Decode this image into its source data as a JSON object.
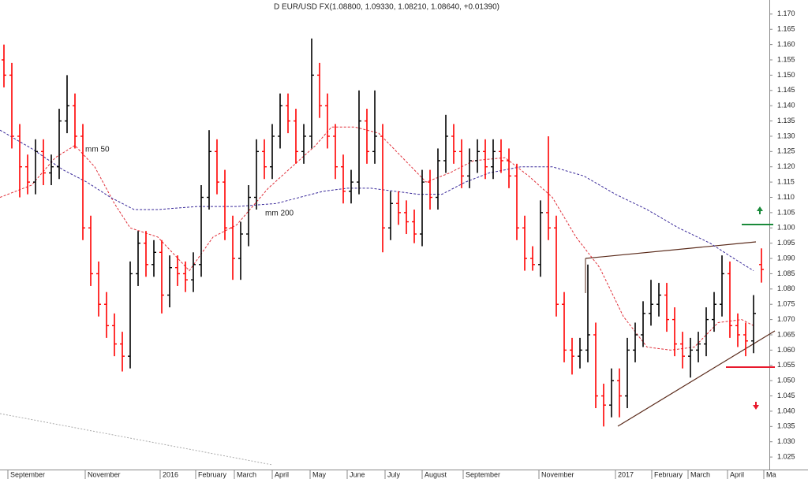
{
  "chart_data": {
    "type": "ohlc",
    "title": "D EUR/USD FX(1.08800, 1.09330, 1.08210, 1.08640, +0.01390)",
    "up_color": "#000000",
    "down_color": "#ff0000",
    "xlim": [
      -0.5,
      97
    ],
    "ylim": [
      1.0209,
      1.1746
    ],
    "xticks": [
      {
        "value": 0.5,
        "label": "September"
      },
      {
        "value": 10.3,
        "label": "November"
      },
      {
        "value": 19.8,
        "label": "2016"
      },
      {
        "value": 24.3,
        "label": "February"
      },
      {
        "value": 29.2,
        "label": "March"
      },
      {
        "value": 34,
        "label": "April"
      },
      {
        "value": 38.8,
        "label": "May"
      },
      {
        "value": 43.5,
        "label": "June"
      },
      {
        "value": 48.3,
        "label": "July"
      },
      {
        "value": 53,
        "label": "August"
      },
      {
        "value": 58.2,
        "label": "September"
      },
      {
        "value": 67.8,
        "label": "November"
      },
      {
        "value": 77.5,
        "label": "2017"
      },
      {
        "value": 82.1,
        "label": "February"
      },
      {
        "value": 86.7,
        "label": "March"
      },
      {
        "value": 91.7,
        "label": "April"
      },
      {
        "value": 96.3,
        "label": "Ma"
      }
    ],
    "yticks": [
      {
        "value": 1.17,
        "label": "1.170"
      },
      1.165,
      {
        "value": 1.16,
        "label": "1.160"
      },
      1.155,
      {
        "value": 1.15,
        "label": "1.150"
      },
      1.145,
      {
        "value": 1.14,
        "label": "1.140"
      },
      1.135,
      {
        "value": 1.13,
        "label": "1.130"
      },
      1.125,
      {
        "value": 1.12,
        "label": "1.120"
      },
      1.115,
      {
        "value": 1.11,
        "label": "1.110"
      },
      1.105,
      {
        "value": 1.1,
        "label": "1.100"
      },
      1.095,
      {
        "value": 1.09,
        "label": "1.090"
      },
      1.085,
      {
        "value": 1.08,
        "label": "1.080"
      },
      1.075,
      {
        "value": 1.07,
        "label": "1.070"
      },
      1.065,
      {
        "value": 1.06,
        "label": "1.060"
      },
      1.055,
      {
        "value": 1.05,
        "label": "1.050"
      },
      1.045,
      {
        "value": 1.04,
        "label": "1.040"
      },
      1.035,
      {
        "value": 1.03,
        "label": "1.030"
      },
      1.025
    ],
    "open": [
      1.155,
      1.15,
      1.13,
      1.12,
      1.115,
      1.125,
      1.118,
      1.12,
      1.135,
      1.14,
      1.13,
      1.1,
      1.085,
      1.075,
      1.068,
      1.062,
      1.058,
      1.085,
      1.095,
      1.088,
      1.092,
      1.078,
      1.087,
      1.085,
      1.083,
      1.088,
      1.11,
      1.125,
      1.115,
      1.1,
      1.09,
      1.098,
      1.11,
      1.125,
      1.12,
      1.13,
      1.14,
      1.135,
      1.125,
      1.13,
      1.15,
      1.14,
      1.13,
      1.12,
      1.112,
      1.115,
      1.135,
      1.125,
      1.13,
      1.1,
      1.108,
      1.105,
      1.102,
      1.098,
      1.115,
      1.11,
      1.122,
      1.13,
      1.125,
      1.117,
      1.122,
      1.125,
      1.12,
      1.125,
      1.122,
      1.117,
      1.1,
      1.09,
      1.088,
      1.105,
      1.1,
      1.075,
      1.06,
      1.058,
      1.06,
      1.065,
      1.045,
      1.042,
      1.05,
      1.045,
      1.06,
      1.065,
      1.072,
      1.075,
      1.078,
      1.07,
      1.062,
      1.058,
      1.06,
      1.062,
      1.07,
      1.075,
      1.085,
      1.068,
      1.065,
      1.063,
      1.088
    ],
    "high": [
      1.16,
      1.154,
      1.134,
      1.124,
      1.129,
      1.129,
      1.124,
      1.139,
      1.15,
      1.144,
      1.134,
      1.104,
      1.089,
      1.079,
      1.072,
      1.066,
      1.089,
      1.099,
      1.099,
      1.096,
      1.096,
      1.091,
      1.091,
      1.089,
      1.092,
      1.114,
      1.132,
      1.129,
      1.119,
      1.104,
      1.102,
      1.114,
      1.129,
      1.129,
      1.134,
      1.144,
      1.144,
      1.139,
      1.134,
      1.162,
      1.154,
      1.144,
      1.134,
      1.124,
      1.119,
      1.145,
      1.139,
      1.145,
      1.134,
      1.112,
      1.112,
      1.109,
      1.106,
      1.119,
      1.119,
      1.126,
      1.137,
      1.134,
      1.129,
      1.126,
      1.129,
      1.129,
      1.129,
      1.129,
      1.126,
      1.121,
      1.104,
      1.094,
      1.109,
      1.13,
      1.104,
      1.079,
      1.064,
      1.064,
      1.088,
      1.069,
      1.049,
      1.054,
      1.054,
      1.064,
      1.069,
      1.076,
      1.083,
      1.082,
      1.082,
      1.074,
      1.066,
      1.064,
      1.066,
      1.074,
      1.079,
      1.091,
      1.089,
      1.072,
      1.069,
      1.078,
      1.0933
    ],
    "low": [
      1.146,
      1.126,
      1.11,
      1.111,
      1.111,
      1.114,
      1.114,
      1.116,
      1.131,
      1.126,
      1.096,
      1.081,
      1.071,
      1.064,
      1.058,
      1.053,
      1.054,
      1.081,
      1.084,
      1.084,
      1.072,
      1.074,
      1.081,
      1.079,
      1.079,
      1.084,
      1.106,
      1.111,
      1.096,
      1.083,
      1.083,
      1.094,
      1.106,
      1.116,
      1.116,
      1.126,
      1.131,
      1.121,
      1.121,
      1.126,
      1.136,
      1.126,
      1.116,
      1.108,
      1.108,
      1.111,
      1.121,
      1.121,
      1.092,
      1.096,
      1.101,
      1.098,
      1.095,
      1.094,
      1.106,
      1.106,
      1.118,
      1.121,
      1.113,
      1.113,
      1.118,
      1.116,
      1.116,
      1.118,
      1.113,
      1.096,
      1.086,
      1.086,
      1.084,
      1.096,
      1.071,
      1.056,
      1.052,
      1.054,
      1.056,
      1.041,
      1.035,
      1.038,
      1.038,
      1.041,
      1.056,
      1.061,
      1.068,
      1.071,
      1.066,
      1.058,
      1.054,
      1.051,
      1.056,
      1.058,
      1.066,
      1.071,
      1.064,
      1.061,
      1.058,
      1.059,
      1.0821
    ],
    "close": [
      1.15,
      1.13,
      1.12,
      1.115,
      1.125,
      1.118,
      1.12,
      1.135,
      1.14,
      1.13,
      1.1,
      1.085,
      1.075,
      1.068,
      1.062,
      1.058,
      1.085,
      1.095,
      1.088,
      1.092,
      1.078,
      1.087,
      1.085,
      1.083,
      1.088,
      1.11,
      1.125,
      1.115,
      1.1,
      1.09,
      1.098,
      1.11,
      1.125,
      1.12,
      1.13,
      1.14,
      1.135,
      1.125,
      1.13,
      1.15,
      1.14,
      1.13,
      1.12,
      1.112,
      1.115,
      1.135,
      1.125,
      1.13,
      1.1,
      1.108,
      1.105,
      1.102,
      1.098,
      1.115,
      1.11,
      1.122,
      1.13,
      1.125,
      1.117,
      1.122,
      1.125,
      1.12,
      1.125,
      1.122,
      1.117,
      1.1,
      1.09,
      1.088,
      1.105,
      1.1,
      1.075,
      1.06,
      1.058,
      1.06,
      1.065,
      1.045,
      1.042,
      1.05,
      1.045,
      1.06,
      1.065,
      1.072,
      1.075,
      1.078,
      1.07,
      1.062,
      1.058,
      1.06,
      1.062,
      1.07,
      1.075,
      1.085,
      1.068,
      1.065,
      1.063,
      1.072,
      1.0864
    ],
    "series": [
      {
        "name": "mm 50",
        "color": "#e0303a",
        "x": [
          -0.5,
          3.5,
          6.5,
          9,
          11.5,
          14,
          16,
          19.5,
          23.5,
          26.5,
          29.5,
          33.5,
          36.5,
          39.5,
          41.5,
          44.5,
          47.5,
          50.5,
          53.5,
          56.5,
          59.5,
          63.5,
          66.5,
          69.5,
          72.5,
          75.5,
          78.5,
          81.5,
          84.5,
          87.5,
          90.5,
          93.5,
          95
        ],
        "values": [
          1.11,
          1.114,
          1.123,
          1.127,
          1.12,
          1.108,
          1.1,
          1.097,
          1.086,
          1.097,
          1.101,
          1.113,
          1.12,
          1.127,
          1.133,
          1.133,
          1.131,
          1.123,
          1.115,
          1.118,
          1.122,
          1.123,
          1.117,
          1.11,
          1.097,
          1.087,
          1.071,
          1.061,
          1.06,
          1.061,
          1.069,
          1.07,
          1.068
        ]
      },
      {
        "name": "mm 200",
        "color": "#3a2a9a",
        "x": [
          -0.5,
          3.5,
          7.5,
          10.5,
          13.5,
          16.5,
          19.5,
          24.5,
          29.5,
          34.5,
          37.5,
          40.5,
          43.5,
          46.5,
          49.5,
          52.5,
          55.5,
          58.5,
          61.5,
          65.5,
          69.5,
          73.5,
          77.5,
          81.5,
          85.5,
          89.5,
          92.5,
          95
        ],
        "values": [
          1.132,
          1.126,
          1.119,
          1.115,
          1.11,
          1.106,
          1.106,
          1.107,
          1.107,
          1.108,
          1.11,
          1.112,
          1.113,
          1.113,
          1.112,
          1.111,
          1.111,
          1.115,
          1.118,
          1.12,
          1.12,
          1.117,
          1.111,
          1.106,
          1.1,
          1.095,
          1.09,
          1.086
        ]
      }
    ]
  }
}
